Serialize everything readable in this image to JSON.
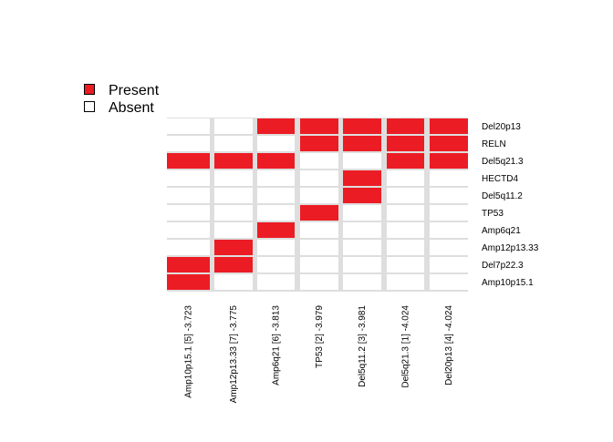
{
  "chart_data": {
    "type": "heatmap",
    "legend": {
      "placement": "top-left",
      "entries": [
        {
          "label": "Present",
          "color": "#ec1c24"
        },
        {
          "label": "Absent",
          "color": "#ffffff"
        }
      ]
    },
    "rows": [
      "Del20p13",
      "RELN",
      "Del5q21.3",
      "HECTD4",
      "Del5q11.2",
      "TP53",
      "Amp6q21",
      "Amp12p13.33",
      "Del7p22.3",
      "Amp10p15.1"
    ],
    "columns": [
      "Amp10p15.1 [5] -3.723",
      "Amp12p13.33 [7] -3.775",
      "Amp6q21 [6] -3.813",
      "TP53 [2] -3.979",
      "Del5q11.2 [3] -3.981",
      "Del5q21.3 [1] -4.024",
      "Del20p13 [4] -4.024"
    ],
    "matrix": [
      [
        0,
        0,
        1,
        1,
        1,
        1,
        1
      ],
      [
        0,
        0,
        0,
        1,
        1,
        1,
        1
      ],
      [
        1,
        1,
        1,
        0,
        0,
        1,
        1
      ],
      [
        0,
        0,
        0,
        0,
        1,
        0,
        0
      ],
      [
        0,
        0,
        0,
        0,
        1,
        0,
        0
      ],
      [
        0,
        0,
        0,
        1,
        0,
        0,
        0
      ],
      [
        0,
        0,
        1,
        0,
        0,
        0,
        0
      ],
      [
        0,
        1,
        0,
        0,
        0,
        0,
        0
      ],
      [
        1,
        1,
        0,
        0,
        0,
        0,
        0
      ],
      [
        1,
        0,
        0,
        0,
        0,
        0,
        0
      ]
    ],
    "colors": {
      "present": "#ec1c24",
      "absent": "#ffffff",
      "grid": "#dedede"
    }
  }
}
